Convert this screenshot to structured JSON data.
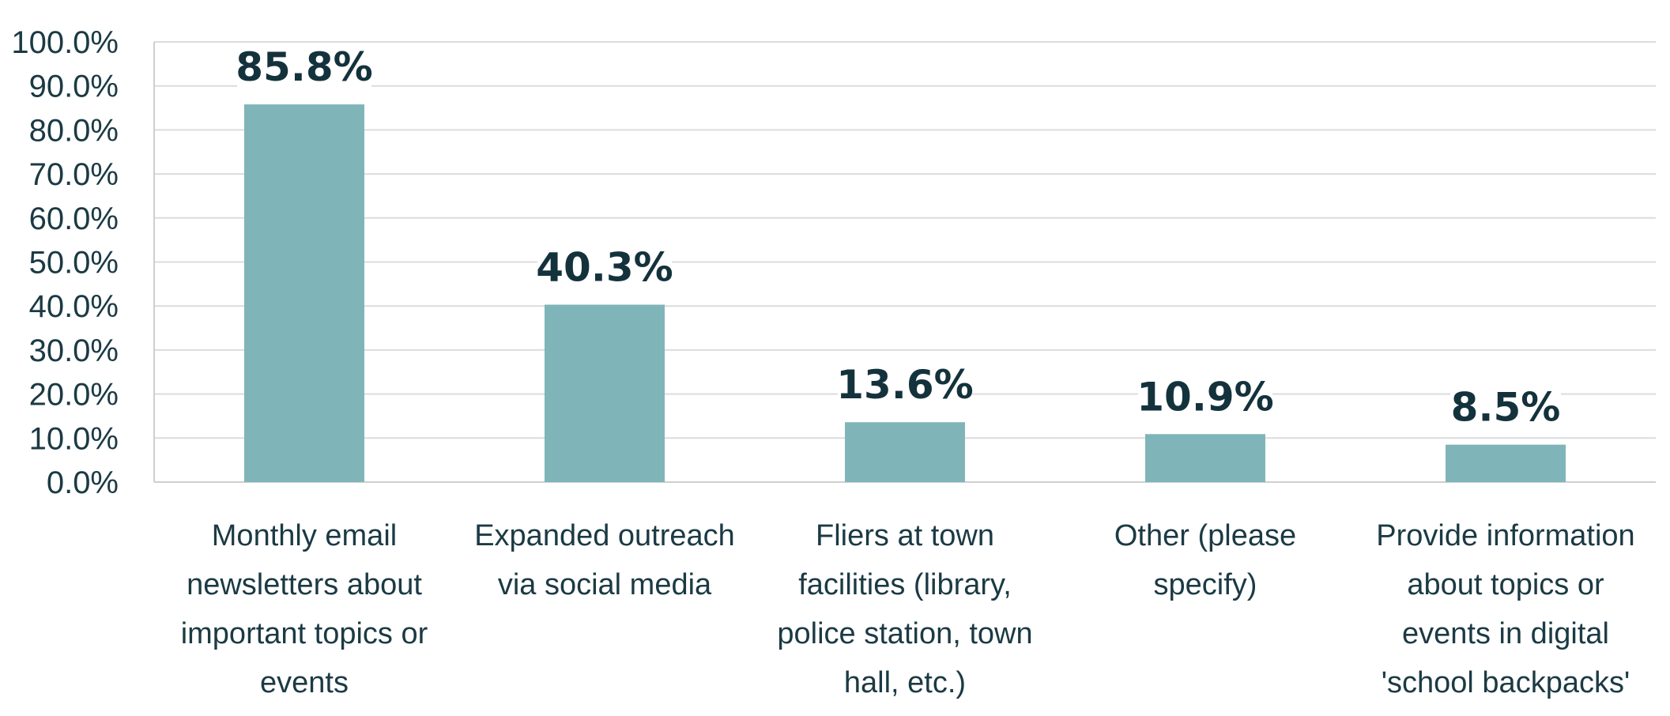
{
  "chart_data": {
    "type": "bar",
    "title": "",
    "xlabel": "",
    "ylabel": "",
    "categories": [
      "Monthly email newsletters about important topics or events",
      "Expanded outreach via social media",
      "Fliers at town facilities (library, police station, town hall, etc.)",
      "Other (please specify)",
      "Provide information about topics or events in digital 'school backpacks'"
    ],
    "category_lines": [
      [
        "Monthly email",
        "newsletters about",
        "important topics or",
        "events"
      ],
      [
        "Expanded outreach",
        "via social media"
      ],
      [
        "Fliers at town",
        "facilities (library,",
        "police station, town",
        "hall, etc.)"
      ],
      [
        "Other (please",
        "specify)"
      ],
      [
        "Provide information",
        "about topics or",
        "events in digital",
        "'school backpacks'"
      ]
    ],
    "values": [
      85.8,
      40.3,
      13.6,
      10.9,
      8.5
    ],
    "data_labels": [
      "85.8%",
      "40.3%",
      "13.6%",
      "10.9%",
      "8.5%"
    ],
    "ylim": [
      0,
      100
    ],
    "yticks": [
      0,
      10,
      20,
      30,
      40,
      50,
      60,
      70,
      80,
      90,
      100
    ],
    "ytick_labels": [
      "0.0%",
      "10.0%",
      "20.0%",
      "30.0%",
      "40.0%",
      "50.0%",
      "60.0%",
      "70.0%",
      "80.0%",
      "90.0%",
      "100.0%"
    ],
    "grid": true,
    "legend": "none",
    "bar_color": "#7fb5b8"
  }
}
